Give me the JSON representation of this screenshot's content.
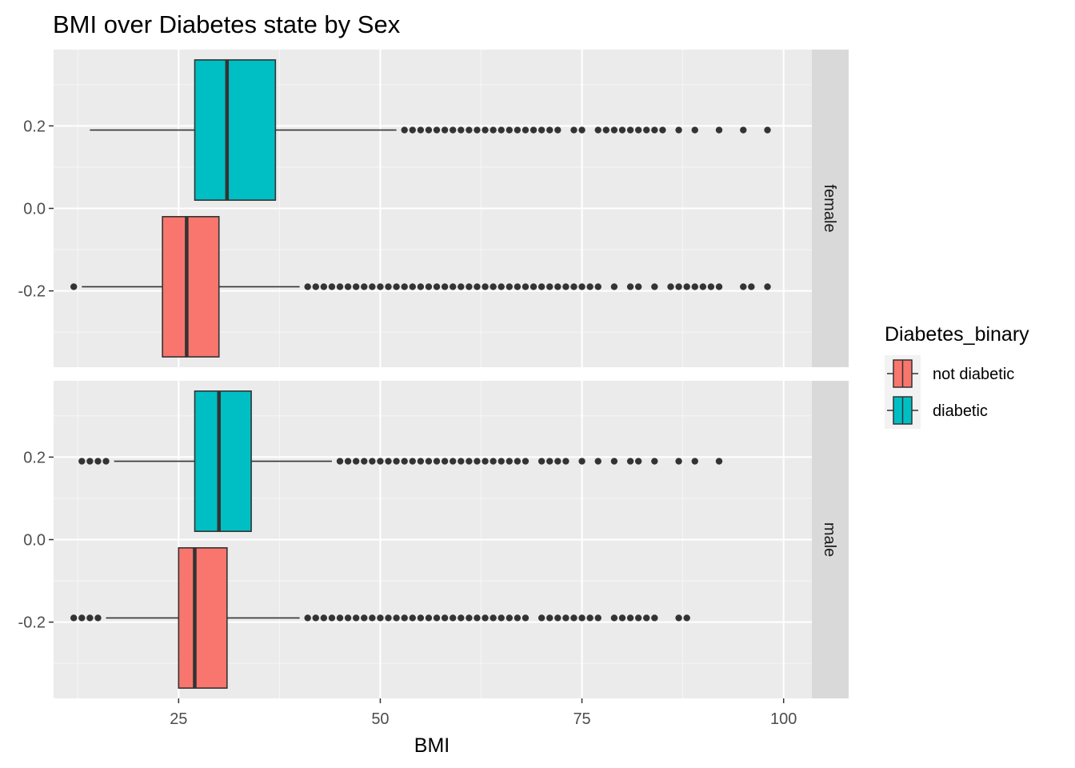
{
  "chart_data": {
    "type": "boxplot",
    "title": "BMI over Diabetes state by Sex",
    "xlabel": "BMI",
    "ylabel": "",
    "orientation": "horizontal",
    "xlim": [
      9.5,
      103.5
    ],
    "ylim": [
      -0.385,
      0.385
    ],
    "x_ticks": [
      25,
      50,
      75,
      100
    ],
    "y_ticks": [
      0.2,
      0.0,
      -0.2
    ],
    "y_tick_labels": [
      "0.2",
      "0.0",
      "-0.2"
    ],
    "grid": true,
    "facet_by": "Sex",
    "legend": {
      "title": "Diabetes_binary",
      "position": "right",
      "entries": [
        {
          "label": "not diabetic",
          "color": "#F8766D"
        },
        {
          "label": "diabetic",
          "color": "#00BFC4"
        }
      ]
    },
    "panels": [
      {
        "label": "female",
        "boxes": [
          {
            "group": "diabetic",
            "color": "#00BFC4",
            "y_center": 0.19,
            "y_min": 0.02,
            "y_max": 0.36,
            "whisker_low": 14,
            "q1": 27,
            "median": 31,
            "q3": 37,
            "whisker_high": 52,
            "outliers": [
              53,
              54,
              55,
              56,
              57,
              58,
              59,
              60,
              61,
              62,
              63,
              64,
              65,
              66,
              67,
              68,
              69,
              70,
              71,
              72,
              74,
              75,
              77,
              78,
              79,
              80,
              81,
              82,
              83,
              84,
              85,
              87,
              89,
              92,
              95,
              98
            ]
          },
          {
            "group": "not diabetic",
            "color": "#F8766D",
            "y_center": -0.19,
            "y_min": -0.36,
            "y_max": -0.02,
            "whisker_low": 13,
            "q1": 23,
            "median": 26,
            "q3": 30,
            "whisker_high": 40,
            "outliers": [
              12,
              41,
              42,
              43,
              44,
              45,
              46,
              47,
              48,
              49,
              50,
              51,
              52,
              53,
              54,
              55,
              56,
              57,
              58,
              59,
              60,
              61,
              62,
              63,
              64,
              65,
              66,
              67,
              68,
              69,
              70,
              71,
              72,
              73,
              74,
              75,
              76,
              77,
              79,
              81,
              82,
              84,
              86,
              87,
              88,
              89,
              90,
              91,
              92,
              95,
              96,
              98
            ]
          }
        ]
      },
      {
        "label": "male",
        "boxes": [
          {
            "group": "diabetic",
            "color": "#00BFC4",
            "y_center": 0.19,
            "y_min": 0.02,
            "y_max": 0.36,
            "whisker_low": 17,
            "q1": 27,
            "median": 30,
            "q3": 34,
            "whisker_high": 44,
            "outliers": [
              13,
              14,
              15,
              16,
              45,
              46,
              47,
              48,
              49,
              50,
              51,
              52,
              53,
              54,
              55,
              56,
              57,
              58,
              59,
              60,
              61,
              62,
              63,
              64,
              65,
              66,
              67,
              68,
              70,
              71,
              72,
              73,
              75,
              77,
              79,
              81,
              82,
              84,
              87,
              89,
              92
            ]
          },
          {
            "group": "not diabetic",
            "color": "#F8766D",
            "y_center": -0.19,
            "y_min": -0.36,
            "y_max": -0.02,
            "whisker_low": 16,
            "q1": 25,
            "median": 27,
            "q3": 31,
            "whisker_high": 40,
            "outliers": [
              12,
              13,
              14,
              15,
              41,
              42,
              43,
              44,
              45,
              46,
              47,
              48,
              49,
              50,
              51,
              52,
              53,
              54,
              55,
              56,
              57,
              58,
              59,
              60,
              61,
              62,
              63,
              64,
              65,
              66,
              67,
              68,
              70,
              71,
              72,
              73,
              74,
              75,
              76,
              77,
              79,
              80,
              81,
              82,
              83,
              84,
              87,
              88
            ]
          }
        ]
      }
    ],
    "colors": {
      "panel_bg": "#EBEBEB",
      "grid_major": "#FFFFFF",
      "strip_bg": "#D9D9D9",
      "outline": "#333333"
    }
  }
}
